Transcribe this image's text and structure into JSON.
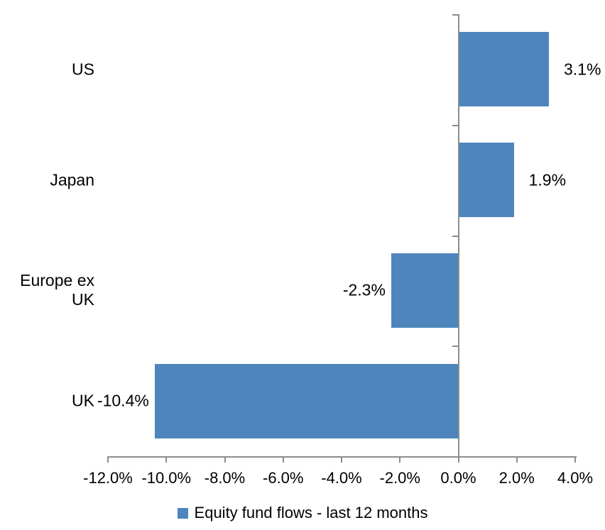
{
  "chart_data": {
    "type": "bar",
    "orientation": "horizontal",
    "categories": [
      "US",
      "Japan",
      "Europe ex UK",
      "UK"
    ],
    "series": [
      {
        "name": "Equity fund flows - last 12 months",
        "values": [
          3.1,
          1.9,
          -2.3,
          -10.4
        ],
        "data_labels": [
          "3.1%",
          "1.9%",
          "-2.3%",
          "-10.4%"
        ]
      }
    ],
    "x_axis": {
      "range": [
        -12,
        4
      ],
      "ticks": [
        -12,
        -10,
        -8,
        -6,
        -4,
        -2,
        0,
        2,
        4
      ],
      "tick_labels": [
        "-12.0%",
        "-10.0%",
        "-8.0%",
        "-6.0%",
        "-4.0%",
        "-2.0%",
        "0.0%",
        "2.0%",
        "4.0%"
      ]
    },
    "legend_position": "bottom",
    "grid": false,
    "colors": {
      "bar": "#4E85BC",
      "axis": "#8C8C8C",
      "text": "#000000"
    }
  },
  "legend": {
    "swatch_color": "#4E85BC",
    "label": "Equity fund flows - last 12 months"
  }
}
